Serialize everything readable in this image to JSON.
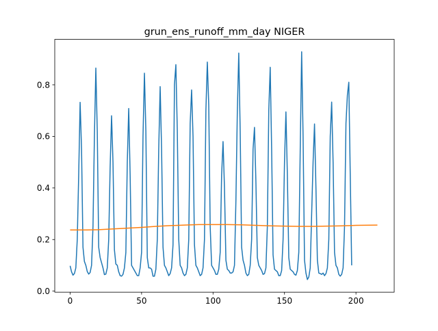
{
  "chart_data": {
    "type": "line",
    "title": "grun_ens_runoff_mm_day NIGER",
    "xlabel": "",
    "ylabel": "",
    "xlim": [
      -10.75,
      226.75
    ],
    "ylim": [
      -0.004,
      0.976
    ],
    "x_ticks": [
      0,
      50,
      100,
      150,
      200
    ],
    "x_tick_labels": [
      "0",
      "50",
      "100",
      "150",
      "200"
    ],
    "y_ticks": [
      0.0,
      0.2,
      0.4,
      0.6,
      0.8
    ],
    "y_tick_labels": [
      "0.0",
      "0.2",
      "0.4",
      "0.6",
      "0.8"
    ],
    "grid": false,
    "legend": "none",
    "series": [
      {
        "color": "#1f77b4",
        "x_start": 0,
        "x_step": 1,
        "values": [
          0.098,
          0.075,
          0.062,
          0.068,
          0.09,
          0.2,
          0.45,
          0.732,
          0.55,
          0.17,
          0.115,
          0.1,
          0.076,
          0.066,
          0.072,
          0.1,
          0.25,
          0.6,
          0.865,
          0.62,
          0.17,
          0.13,
          0.11,
          0.09,
          0.064,
          0.066,
          0.09,
          0.2,
          0.48,
          0.68,
          0.5,
          0.16,
          0.105,
          0.1,
          0.075,
          0.06,
          0.058,
          0.065,
          0.09,
          0.15,
          0.5,
          0.708,
          0.45,
          0.1,
          0.09,
          0.08,
          0.07,
          0.06,
          0.06,
          0.09,
          0.15,
          0.6,
          0.845,
          0.62,
          0.13,
          0.09,
          0.09,
          0.085,
          0.058,
          0.058,
          0.085,
          0.2,
          0.55,
          0.793,
          0.55,
          0.17,
          0.1,
          0.09,
          0.075,
          0.06,
          0.068,
          0.09,
          0.18,
          0.8,
          0.878,
          0.62,
          0.2,
          0.1,
          0.09,
          0.07,
          0.06,
          0.065,
          0.09,
          0.2,
          0.65,
          0.78,
          0.6,
          0.18,
          0.1,
          0.09,
          0.075,
          0.06,
          0.065,
          0.09,
          0.2,
          0.7,
          0.888,
          0.72,
          0.25,
          0.1,
          0.09,
          0.08,
          0.065,
          0.065,
          0.085,
          0.15,
          0.45,
          0.58,
          0.4,
          0.12,
          0.085,
          0.08,
          0.07,
          0.07,
          0.075,
          0.1,
          0.35,
          0.7,
          0.923,
          0.62,
          0.17,
          0.12,
          0.1,
          0.07,
          0.06,
          0.065,
          0.1,
          0.2,
          0.55,
          0.635,
          0.42,
          0.13,
          0.1,
          0.09,
          0.08,
          0.065,
          0.068,
          0.09,
          0.25,
          0.7,
          0.868,
          0.55,
          0.14,
          0.085,
          0.08,
          0.075,
          0.06,
          0.06,
          0.08,
          0.2,
          0.5,
          0.695,
          0.45,
          0.13,
          0.085,
          0.08,
          0.075,
          0.065,
          0.062,
          0.08,
          0.15,
          0.55,
          0.928,
          0.6,
          0.12,
          0.07,
          0.045,
          0.055,
          0.09,
          0.3,
          0.5,
          0.648,
          0.4,
          0.12,
          0.07,
          0.068,
          0.065,
          0.07,
          0.06,
          0.068,
          0.09,
          0.2,
          0.6,
          0.733,
          0.5,
          0.15,
          0.1,
          0.09,
          0.065,
          0.058,
          0.065,
          0.09,
          0.25,
          0.65,
          0.76,
          0.81,
          0.45,
          0.1
        ]
      },
      {
        "color": "#ff7f0e",
        "x": [
          0,
          10,
          20,
          30,
          40,
          50,
          60,
          70,
          80,
          90,
          100,
          110,
          120,
          130,
          140,
          150,
          160,
          170,
          180,
          190,
          200,
          215
        ],
        "values": [
          0.237,
          0.237,
          0.238,
          0.241,
          0.244,
          0.247,
          0.251,
          0.254,
          0.256,
          0.258,
          0.258,
          0.258,
          0.257,
          0.255,
          0.253,
          0.252,
          0.251,
          0.251,
          0.252,
          0.253,
          0.255,
          0.256
        ]
      }
    ]
  }
}
